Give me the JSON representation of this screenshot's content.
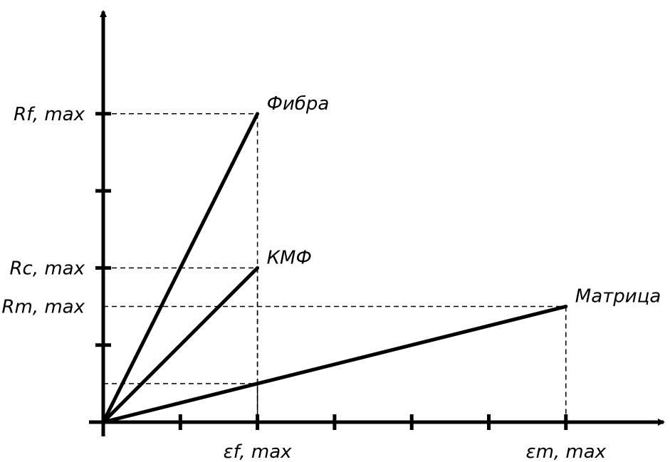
{
  "chart_data": {
    "type": "line",
    "x_tick_count": 7,
    "y_tick_count": 5,
    "y_tick_labels": [
      {
        "text": "Rf, max",
        "y": 4.0
      },
      {
        "text": "Rc, max",
        "y": 2.0
      },
      {
        "text": "Rm, max",
        "y": 1.5
      }
    ],
    "x_tick_labels": [
      {
        "text": "εf, max",
        "x": 2.0
      },
      {
        "text": "εm, max",
        "x": 6.0
      }
    ],
    "series": [
      {
        "name": "Фибра",
        "points": [
          [
            0,
            0
          ],
          [
            2.0,
            4.0
          ]
        ]
      },
      {
        "name": "КМФ",
        "points": [
          [
            0,
            0
          ],
          [
            2.0,
            2.0
          ]
        ]
      },
      {
        "name": "Матрица",
        "points": [
          [
            0,
            0
          ],
          [
            6.0,
            1.5
          ]
        ]
      }
    ],
    "guide_lines": [
      {
        "x": 2.0,
        "y": 4.0
      },
      {
        "x": 2.0,
        "y": 2.0
      },
      {
        "x": 6.0,
        "y": 1.5
      },
      {
        "x": 2.0,
        "y": 0.5
      }
    ],
    "xlim": [
      0,
      7
    ],
    "ylim": [
      0,
      5
    ],
    "grid": false
  }
}
